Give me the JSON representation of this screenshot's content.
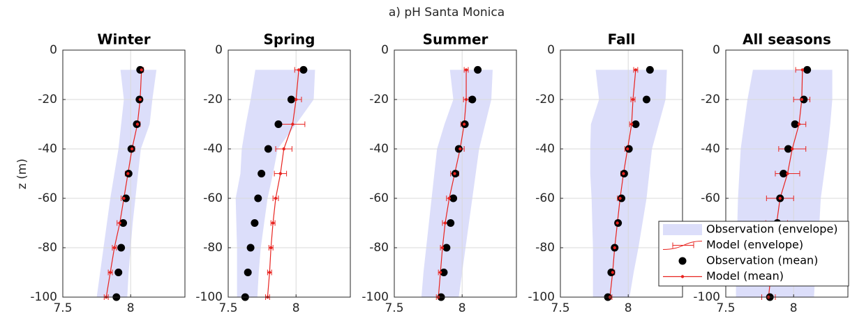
{
  "title": "a) pH Santa Monica",
  "ylabel": "z (m)",
  "chart_data": [
    {
      "type": "profile",
      "title": "Winter",
      "xlim": [
        7.5,
        8.4
      ],
      "xticks": [
        7.5,
        8
      ],
      "ylim": [
        -100,
        0
      ],
      "yticks": [
        -100,
        -80,
        -60,
        -40,
        -20,
        0
      ],
      "grid": true,
      "y": [
        -8,
        -20,
        -30,
        -40,
        -50,
        -60,
        -70,
        -80,
        -90,
        -100
      ],
      "series": [
        {
          "color": "#dcdefa",
          "lower": [
            7.925,
            7.95,
            7.93,
            7.91,
            7.88,
            7.85,
            7.825,
            7.8,
            7.775,
            7.75
          ],
          "upper": [
            8.19,
            8.16,
            8.14,
            8.075,
            8.055,
            8.035,
            8.015,
            8.0,
            7.985,
            7.975
          ]
        },
        {
          "color": "#e8231f",
          "err": [
            0.015,
            0.015,
            0.02,
            0.02,
            0.02,
            0.02,
            0.02,
            0.015,
            0.015,
            0.015
          ]
        },
        {
          "color": "#000000",
          "values": [
            8.07,
            8.065,
            8.045,
            8.005,
            7.985,
            7.965,
            7.945,
            7.93,
            7.91,
            7.895
          ]
        },
        {
          "color": "#e8231f",
          "values": [
            8.08,
            8.07,
            8.05,
            8.01,
            7.98,
            7.95,
            7.92,
            7.88,
            7.85,
            7.82
          ]
        }
      ]
    },
    {
      "type": "profile",
      "title": "Spring",
      "xlim": [
        7.5,
        8.4
      ],
      "xticks": [
        7.5,
        8
      ],
      "ylim": [
        -100,
        0
      ],
      "yticks": [
        -100,
        -80,
        -60,
        -40,
        -20,
        0
      ],
      "grid": true,
      "y": [
        -8,
        -20,
        -30,
        -40,
        -50,
        -60,
        -70,
        -80,
        -90,
        -100
      ],
      "series": [
        {
          "color": "#dcdefa",
          "lower": [
            7.7,
            7.665,
            7.63,
            7.6,
            7.59,
            7.555,
            7.56,
            7.565,
            7.565,
            7.565
          ],
          "upper": [
            8.14,
            8.13,
            8.0,
            7.865,
            7.83,
            7.79,
            7.765,
            7.74,
            7.725,
            7.715
          ]
        },
        {
          "color": "#e8231f",
          "err": [
            0.03,
            0.04,
            0.09,
            0.06,
            0.045,
            0.02,
            0.015,
            0.015,
            0.015,
            0.015
          ]
        },
        {
          "color": "#000000",
          "values": [
            8.055,
            7.965,
            7.87,
            7.795,
            7.745,
            7.72,
            7.695,
            7.665,
            7.645,
            7.625
          ]
        },
        {
          "color": "#e8231f",
          "values": [
            8.02,
            8.0,
            7.975,
            7.91,
            7.885,
            7.85,
            7.83,
            7.815,
            7.805,
            7.79
          ]
        }
      ]
    },
    {
      "type": "profile",
      "title": "Summer",
      "xlim": [
        7.5,
        8.4
      ],
      "xticks": [
        7.5,
        8
      ],
      "ylim": [
        -100,
        0
      ],
      "yticks": [
        -100,
        -80,
        -60,
        -40,
        -20,
        0
      ],
      "grid": true,
      "y": [
        -8,
        -20,
        -30,
        -40,
        -50,
        -60,
        -70,
        -80,
        -90,
        -100
      ],
      "series": [
        {
          "color": "#dcdefa",
          "lower": [
            7.91,
            7.935,
            7.87,
            7.815,
            7.795,
            7.775,
            7.755,
            7.735,
            7.715,
            7.7
          ],
          "upper": [
            8.225,
            8.215,
            8.17,
            8.125,
            8.1,
            8.075,
            8.05,
            8.025,
            8.0,
            7.975
          ]
        },
        {
          "color": "#e8231f",
          "err": [
            0.015,
            0.02,
            0.025,
            0.03,
            0.03,
            0.02,
            0.02,
            0.015,
            0.015,
            0.015
          ]
        },
        {
          "color": "#000000",
          "values": [
            8.115,
            8.075,
            8.02,
            7.975,
            7.95,
            7.935,
            7.915,
            7.885,
            7.865,
            7.845
          ]
        },
        {
          "color": "#e8231f",
          "values": [
            8.03,
            8.03,
            8.015,
            7.985,
            7.945,
            7.905,
            7.875,
            7.855,
            7.84,
            7.825
          ]
        }
      ]
    },
    {
      "type": "profile",
      "title": "Fall",
      "xlim": [
        7.5,
        8.4
      ],
      "xticks": [
        7.5,
        8
      ],
      "ylim": [
        -100,
        0
      ],
      "yticks": [
        -100,
        -80,
        -60,
        -40,
        -20,
        0
      ],
      "grid": true,
      "y": [
        -8,
        -20,
        -30,
        -40,
        -50,
        -60,
        -70,
        -80,
        -90,
        -100
      ],
      "series": [
        {
          "color": "#dcdefa",
          "lower": [
            7.76,
            7.785,
            7.725,
            7.72,
            7.72,
            7.73,
            7.735,
            7.74,
            7.74,
            7.74
          ],
          "upper": [
            8.285,
            8.275,
            8.225,
            8.175,
            8.155,
            8.135,
            8.105,
            8.075,
            8.04,
            8.01
          ]
        },
        {
          "color": "#e8231f",
          "err": [
            0.015,
            0.015,
            0.015,
            0.02,
            0.02,
            0.02,
            0.015,
            0.015,
            0.015,
            0.015
          ]
        },
        {
          "color": "#000000",
          "values": [
            8.16,
            8.135,
            8.055,
            8.005,
            7.97,
            7.95,
            7.925,
            7.9,
            7.875,
            7.85
          ]
        },
        {
          "color": "#e8231f",
          "values": [
            8.055,
            8.035,
            8.025,
            7.995,
            7.965,
            7.94,
            7.92,
            7.9,
            7.885,
            7.865
          ]
        }
      ]
    },
    {
      "type": "profile",
      "title": "All seasons",
      "xlim": [
        7.5,
        8.4
      ],
      "xticks": [
        7.5,
        8
      ],
      "ylim": [
        -100,
        0
      ],
      "yticks": [
        -100,
        -80,
        -60,
        -40,
        -20,
        0
      ],
      "grid": true,
      "legend": "lower right",
      "y": [
        -8,
        -20,
        -30,
        -40,
        -50,
        -60,
        -70,
        -80,
        -90,
        -100
      ],
      "series": [
        {
          "name": "Observation (envelope)",
          "color": "#dcdefa",
          "lower": [
            7.7,
            7.66,
            7.635,
            7.61,
            7.6,
            7.59,
            7.585,
            7.58,
            7.575,
            7.575
          ],
          "upper": [
            8.285,
            8.285,
            8.27,
            8.25,
            8.225,
            8.2,
            8.19,
            8.175,
            8.16,
            8.15
          ]
        },
        {
          "name": "Model (envelope)",
          "color": "#e8231f",
          "err": [
            0.05,
            0.06,
            0.05,
            0.1,
            0.09,
            0.1,
            0.08,
            0.07,
            0.06,
            0.05
          ]
        },
        {
          "name": "Observation (mean)",
          "color": "#000000",
          "values": [
            8.1,
            8.075,
            8.01,
            7.96,
            7.925,
            7.9,
            7.88,
            7.86,
            7.845,
            7.825
          ]
        },
        {
          "name": "Model (mean)",
          "color": "#e8231f",
          "values": [
            8.065,
            8.06,
            8.04,
            7.99,
            7.955,
            7.9,
            7.875,
            7.855,
            7.835,
            7.815
          ]
        }
      ]
    }
  ]
}
